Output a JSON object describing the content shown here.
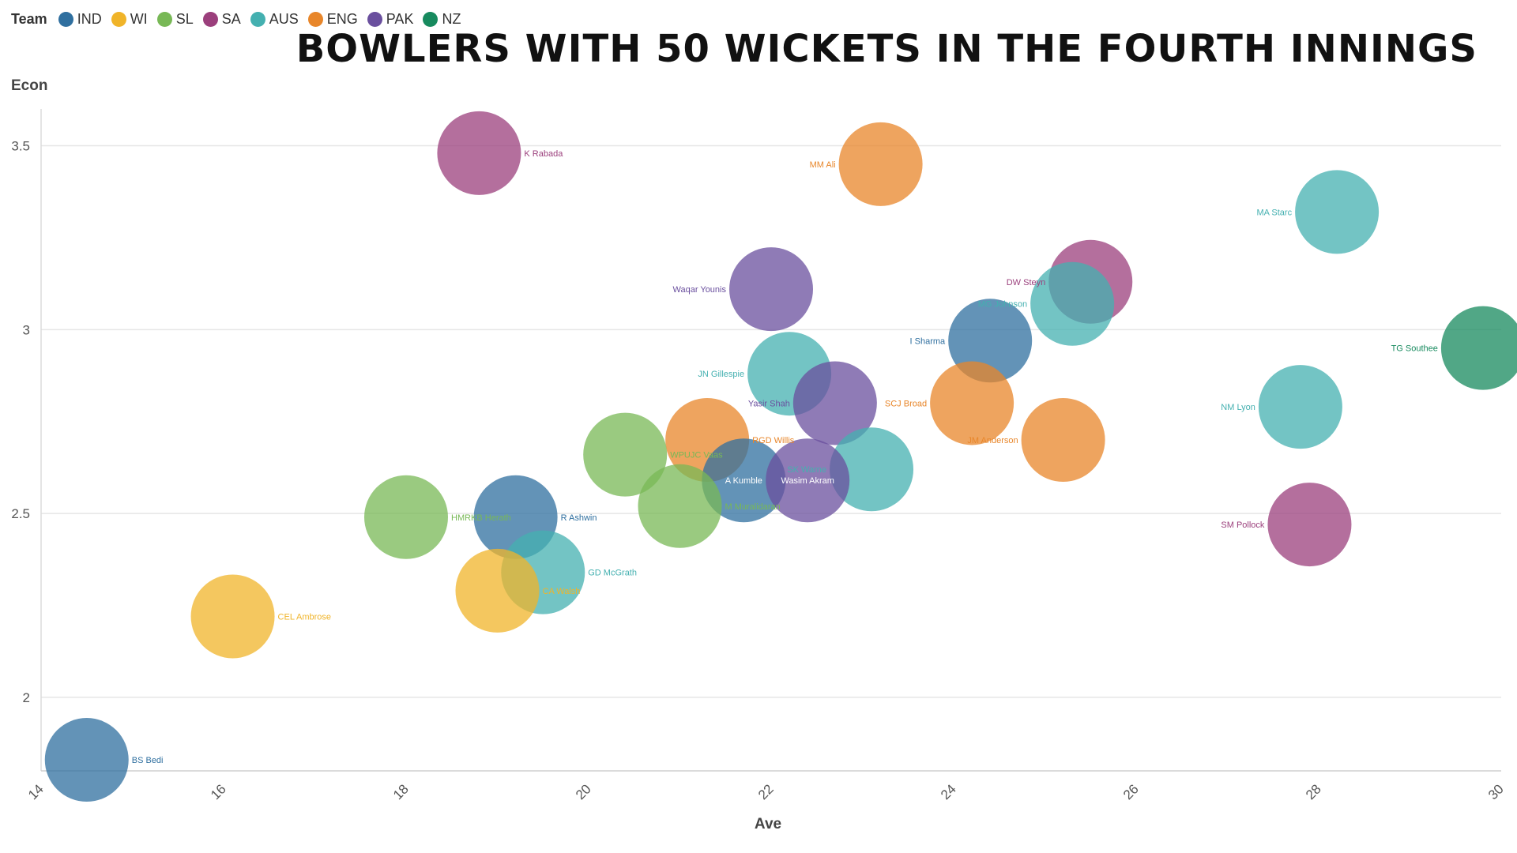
{
  "legend": {
    "title": "Team",
    "items": [
      {
        "label": "IND",
        "color": "#2f6f9f"
      },
      {
        "label": "WI",
        "color": "#f0b429"
      },
      {
        "label": "SL",
        "color": "#78b856"
      },
      {
        "label": "SA",
        "color": "#9b3f7c"
      },
      {
        "label": "AUS",
        "color": "#44b0b0"
      },
      {
        "label": "ENG",
        "color": "#e8862a"
      },
      {
        "label": "PAK",
        "color": "#6a4f9e"
      },
      {
        "label": "NZ",
        "color": "#178a5e"
      }
    ]
  },
  "chart_data": {
    "type": "scatter",
    "title": "BOWLERS WITH 50 WICKETS IN THE FOURTH INNINGS",
    "xlabel": "Ave",
    "ylabel": "Econ",
    "xlim": [
      14,
      30
    ],
    "ylim": [
      1.8,
      3.6
    ],
    "xticks": [
      14,
      16,
      18,
      20,
      22,
      24,
      26,
      28,
      30
    ],
    "yticks": [
      2,
      2.5,
      3,
      3.5
    ],
    "grid": true,
    "legend_position": "top-left",
    "points": [
      {
        "name": "K Rabada",
        "team": "SA",
        "x": 18.8,
        "y": 3.48,
        "label_side": "right"
      },
      {
        "name": "MM Ali",
        "team": "ENG",
        "x": 23.2,
        "y": 3.45,
        "label_side": "left"
      },
      {
        "name": "MA Starc",
        "team": "AUS",
        "x": 28.2,
        "y": 3.32,
        "label_side": "left"
      },
      {
        "name": "DW Steyn",
        "team": "SA",
        "x": 25.5,
        "y": 3.13,
        "label_side": "left"
      },
      {
        "name": "Waqar Younis",
        "team": "PAK",
        "x": 22.0,
        "y": 3.11,
        "label_side": "left"
      },
      {
        "name": "MG Johnson",
        "team": "AUS",
        "x": 25.3,
        "y": 3.07,
        "label_side": "left"
      },
      {
        "name": "I Sharma",
        "team": "IND",
        "x": 24.4,
        "y": 2.97,
        "label_side": "left"
      },
      {
        "name": "TG Southee",
        "team": "NZ",
        "x": 29.8,
        "y": 2.95,
        "label_side": "left"
      },
      {
        "name": "JN Gillespie",
        "team": "AUS",
        "x": 22.2,
        "y": 2.88,
        "label_side": "left"
      },
      {
        "name": "Yasir Shah",
        "team": "PAK",
        "x": 22.7,
        "y": 2.8,
        "label_side": "left"
      },
      {
        "name": "SCJ Broad",
        "team": "ENG",
        "x": 24.2,
        "y": 2.8,
        "label_side": "left"
      },
      {
        "name": "NM Lyon",
        "team": "AUS",
        "x": 27.8,
        "y": 2.79,
        "label_side": "left"
      },
      {
        "name": "JM Anderson",
        "team": "ENG",
        "x": 25.2,
        "y": 2.7,
        "label_side": "left"
      },
      {
        "name": "RGD Willis",
        "team": "ENG",
        "x": 21.3,
        "y": 2.7,
        "label_side": "right"
      },
      {
        "name": "WPUJC Vaas",
        "team": "SL",
        "x": 20.4,
        "y": 2.66,
        "label_side": "right"
      },
      {
        "name": "SK Warne",
        "team": "AUS",
        "x": 23.1,
        "y": 2.62,
        "label_side": "left"
      },
      {
        "name": "A Kumble",
        "team": "IND",
        "x": 21.7,
        "y": 2.59,
        "label_side": "center"
      },
      {
        "name": "Wasim Akram",
        "team": "PAK",
        "x": 22.4,
        "y": 2.59,
        "label_side": "center"
      },
      {
        "name": "M Muralidaran",
        "team": "SL",
        "x": 21.0,
        "y": 2.52,
        "label_side": "right"
      },
      {
        "name": "HMRKB Herath",
        "team": "SL",
        "x": 18.0,
        "y": 2.49,
        "label_side": "right"
      },
      {
        "name": "R Ashwin",
        "team": "IND",
        "x": 19.2,
        "y": 2.49,
        "label_side": "right"
      },
      {
        "name": "SM Pollock",
        "team": "SA",
        "x": 27.9,
        "y": 2.47,
        "label_side": "left"
      },
      {
        "name": "GD McGrath",
        "team": "AUS",
        "x": 19.5,
        "y": 2.34,
        "label_side": "right"
      },
      {
        "name": "CA Walsh",
        "team": "WI",
        "x": 19.0,
        "y": 2.29,
        "label_side": "right"
      },
      {
        "name": "CEL Ambrose",
        "team": "WI",
        "x": 16.1,
        "y": 2.22,
        "label_side": "right"
      },
      {
        "name": "BS Bedi",
        "team": "IND",
        "x": 14.5,
        "y": 1.83,
        "label_side": "right"
      }
    ]
  }
}
